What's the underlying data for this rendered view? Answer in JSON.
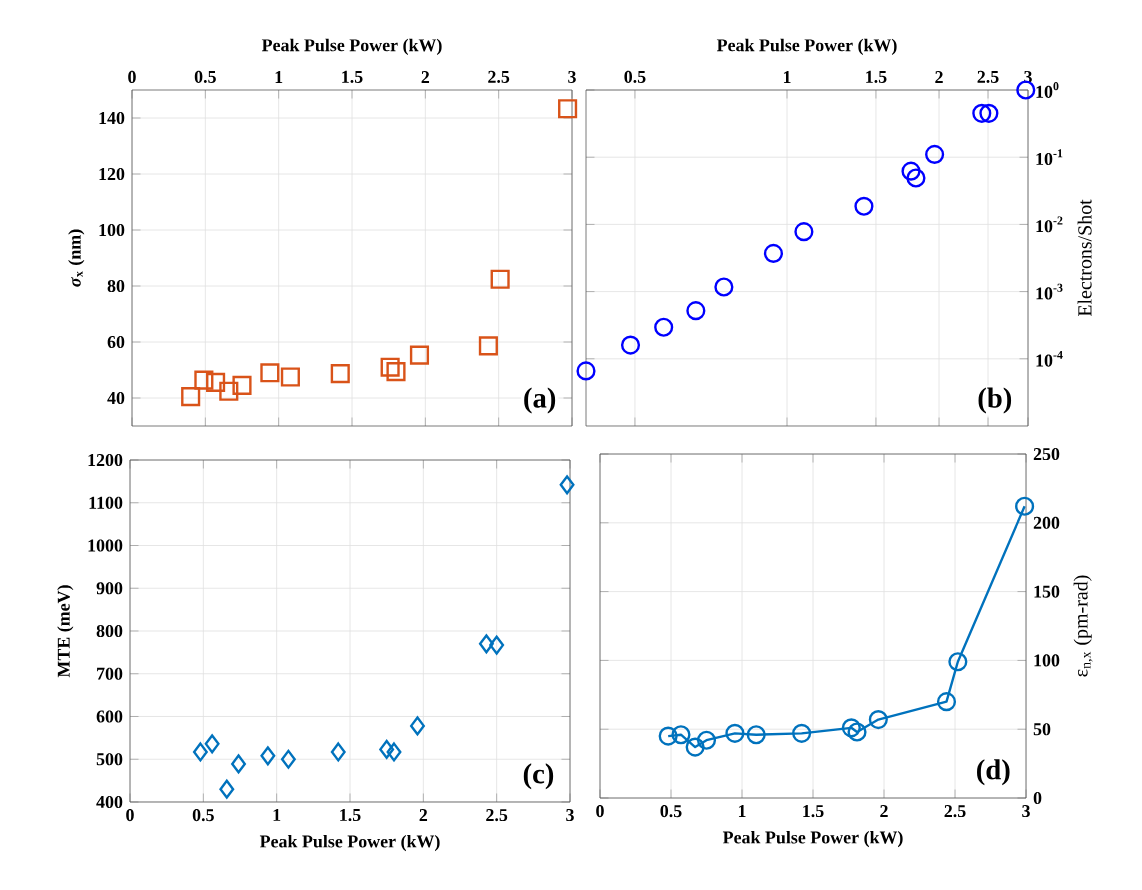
{
  "chart_data": [
    {
      "type": "scatter",
      "xlabel": "Peak Pulse Power (kW)",
      "ylabel": "*σ*$_{x}$ (nm)",
      "marker": "square",
      "color": "#d95319",
      "grid": true,
      "x": [
        0.4,
        0.49,
        0.57,
        0.66,
        0.75,
        0.94,
        1.08,
        1.42,
        1.76,
        1.8,
        1.96,
        2.43,
        2.51,
        2.97
      ],
      "values": [
        40.5,
        46.4,
        45.6,
        42.4,
        44.5,
        49,
        47.5,
        48.7,
        51,
        49.4,
        55.3,
        58.6,
        82.4,
        143.3
      ],
      "xlim": [
        0,
        3
      ],
      "ylim": [
        30,
        150
      ],
      "xticks": [
        0,
        0.5,
        1,
        1.5,
        2,
        2.5,
        3
      ],
      "yticks": [
        40,
        60,
        80,
        100,
        120,
        140
      ],
      "annotations": [
        "(a)"
      ]
    },
    {
      "type": "scatter",
      "xlabel": "Peak Pulse Power (kW)",
      "ylabel": "Electrons/Shot",
      "marker": "circle",
      "color": "#0000ff",
      "grid": true,
      "log": "xy",
      "x": [
        0.4,
        0.49,
        0.57,
        0.66,
        0.75,
        0.94,
        1.08,
        1.42,
        1.76,
        1.8,
        1.96,
        2.43,
        2.51,
        2.97
      ],
      "values": [
        6.6e-05,
        0.00016,
        0.000295,
        0.00052,
        0.00117,
        0.0037,
        0.0078,
        0.0186,
        0.062,
        0.049,
        0.11,
        0.45,
        0.45,
        1.0
      ],
      "xlim": [
        0.4,
        3
      ],
      "ylim": [
        1e-05,
        1
      ],
      "xticks": [
        0.5,
        1,
        1.5,
        2,
        2.5,
        3
      ],
      "yticks": [
        {
          "value": 0.0001,
          "label": "10$^{-4}$"
        },
        {
          "value": 0.001,
          "label": "10$^{-3}$"
        },
        {
          "value": 0.01,
          "label": "10$^{-2}$"
        },
        {
          "value": 0.1,
          "label": "10$^{-1}$"
        },
        {
          "value": 1,
          "label": "10$^{0}$"
        }
      ],
      "annotations": [
        "(b)"
      ]
    },
    {
      "type": "scatter",
      "xlabel": "Peak Pulse Power (kW)",
      "ylabel": "MTE (meV)",
      "marker": "diamond",
      "color": "#0072bd",
      "grid": true,
      "x": [
        0.48,
        0.56,
        0.66,
        0.74,
        0.94,
        1.08,
        1.42,
        1.75,
        1.8,
        1.96,
        2.43,
        2.5,
        2.98
      ],
      "values": [
        517,
        536,
        430,
        489,
        508,
        500,
        517,
        523,
        517,
        578,
        770,
        767,
        1142
      ],
      "xlim": [
        0,
        3
      ],
      "ylim": [
        400,
        1200
      ],
      "xticks": [
        0,
        0.5,
        1,
        1.5,
        2,
        2.5,
        3
      ],
      "yticks": [
        400,
        500,
        600,
        700,
        800,
        900,
        1000,
        1100,
        1200
      ],
      "annotations": [
        "(c)"
      ]
    },
    {
      "type": "line",
      "xlabel": "Peak Pulse Power (kW)",
      "ylabel": "ε$_{n,x}$ (pm-rad)",
      "marker": "circle",
      "color": "#0072bd",
      "grid": true,
      "x": [
        0.48,
        0.57,
        0.67,
        0.75,
        0.95,
        1.1,
        1.42,
        1.77,
        1.81,
        1.96,
        2.44,
        2.52,
        2.99
      ],
      "values": [
        45,
        46,
        37,
        42,
        47,
        46,
        47,
        51,
        48,
        57,
        70,
        99,
        212
      ],
      "xlim": [
        0,
        3
      ],
      "ylim": [
        0,
        250
      ],
      "xticks": [
        0,
        0.5,
        1,
        1.5,
        2,
        2.5,
        3
      ],
      "yticks": [
        0,
        50,
        100,
        150,
        200,
        250
      ],
      "annotations": [
        "(d)"
      ]
    }
  ]
}
